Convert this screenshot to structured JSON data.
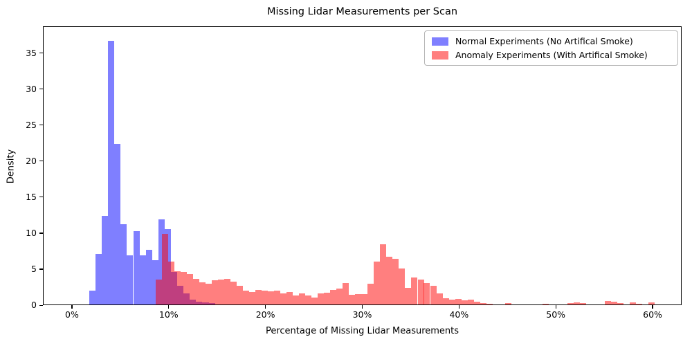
{
  "chart_data": {
    "type": "bar",
    "subtype": "overlapping-density-histogram",
    "title": "Missing Lidar Measurements per Scan",
    "xlabel": "Percentage of Missing Lidar Measurements",
    "ylabel": "Density",
    "xlim": [
      -3,
      63
    ],
    "ylim": [
      0,
      38.7
    ],
    "grid": false,
    "x_ticks": [
      "0%",
      "10%",
      "20%",
      "30%",
      "40%",
      "50%",
      "60%"
    ],
    "x_tick_values": [
      0,
      10,
      20,
      30,
      40,
      50,
      60
    ],
    "y_ticks": [
      "0",
      "5",
      "10",
      "15",
      "20",
      "25",
      "30",
      "35"
    ],
    "y_tick_values": [
      0,
      5,
      10,
      15,
      20,
      25,
      30,
      35
    ],
    "legend_position": "top-right",
    "colors": {
      "normal_fill": "rgba(0,0,255,0.5)",
      "anomaly_fill": "rgba(255,0,0,0.5)",
      "normal_hex": "#8080ff",
      "anomaly_hex": "#ff8080",
      "overlap_hex": "#bf4080",
      "axis": "#000000"
    },
    "series": [
      {
        "name": "Normal Experiments (No Artifical Smoke)",
        "color": "rgba(0,0,255,0.5)",
        "bin_width": 0.65,
        "bins": [
          [
            1.71,
            1.9
          ],
          [
            2.36,
            7.0
          ],
          [
            3.01,
            12.3
          ],
          [
            3.66,
            36.6
          ],
          [
            4.31,
            22.3
          ],
          [
            4.96,
            11.1
          ],
          [
            5.61,
            6.8
          ],
          [
            6.26,
            10.2
          ],
          [
            6.91,
            6.8
          ],
          [
            7.56,
            7.6
          ],
          [
            8.21,
            6.1
          ],
          [
            8.86,
            11.8
          ],
          [
            9.51,
            10.45
          ],
          [
            10.16,
            4.5
          ],
          [
            10.81,
            2.6
          ],
          [
            11.46,
            1.5
          ],
          [
            12.11,
            0.7
          ],
          [
            12.76,
            0.4
          ],
          [
            13.41,
            0.25
          ],
          [
            14.06,
            0.15
          ]
        ]
      },
      {
        "name": "Anomaly Experiments (With Artifical Smoke)",
        "color": "rgba(255,0,0,0.5)",
        "bin_width": 0.645,
        "bins": [
          [
            8.56,
            3.5
          ],
          [
            9.2,
            9.8
          ],
          [
            9.85,
            6.0
          ],
          [
            10.49,
            4.6
          ],
          [
            11.14,
            4.5
          ],
          [
            11.78,
            4.2
          ],
          [
            12.43,
            3.6
          ],
          [
            13.07,
            3.1
          ],
          [
            13.72,
            2.9
          ],
          [
            14.36,
            3.4
          ],
          [
            15.01,
            3.5
          ],
          [
            15.65,
            3.6
          ],
          [
            16.3,
            3.2
          ],
          [
            16.94,
            2.6
          ],
          [
            17.59,
            1.9
          ],
          [
            18.23,
            1.7
          ],
          [
            18.88,
            2.0
          ],
          [
            19.52,
            1.95
          ],
          [
            20.17,
            1.8
          ],
          [
            20.81,
            1.95
          ],
          [
            21.46,
            1.5
          ],
          [
            22.1,
            1.7
          ],
          [
            22.75,
            1.25
          ],
          [
            23.39,
            1.55
          ],
          [
            24.04,
            1.25
          ],
          [
            24.68,
            1.0
          ],
          [
            25.33,
            1.55
          ],
          [
            25.97,
            1.65
          ],
          [
            26.62,
            2.05
          ],
          [
            27.26,
            2.2
          ],
          [
            27.91,
            3.0
          ],
          [
            28.55,
            1.3
          ],
          [
            29.2,
            1.4
          ],
          [
            29.84,
            1.4
          ],
          [
            30.49,
            2.9
          ],
          [
            31.13,
            6.0
          ],
          [
            31.78,
            8.4
          ],
          [
            32.42,
            6.6
          ],
          [
            33.07,
            6.3
          ],
          [
            33.71,
            5.0
          ],
          [
            34.36,
            2.3
          ],
          [
            35.0,
            3.7
          ],
          [
            35.65,
            3.5
          ],
          [
            36.29,
            2.95
          ],
          [
            36.94,
            2.6
          ],
          [
            37.58,
            1.5
          ],
          [
            38.23,
            0.9
          ],
          [
            38.87,
            0.65
          ],
          [
            39.52,
            0.8
          ],
          [
            40.16,
            0.55
          ],
          [
            40.81,
            0.7
          ],
          [
            41.45,
            0.35
          ],
          [
            42.1,
            0.2
          ],
          [
            42.74,
            0.1
          ],
          [
            44.68,
            0.15
          ],
          [
            48.55,
            0.13
          ],
          [
            51.13,
            0.16
          ],
          [
            51.77,
            0.3
          ],
          [
            52.42,
            0.15
          ],
          [
            55.0,
            0.5
          ],
          [
            55.64,
            0.35
          ],
          [
            56.29,
            0.2
          ],
          [
            57.58,
            0.25
          ],
          [
            58.22,
            0.1
          ],
          [
            59.51,
            0.3
          ]
        ]
      }
    ]
  }
}
